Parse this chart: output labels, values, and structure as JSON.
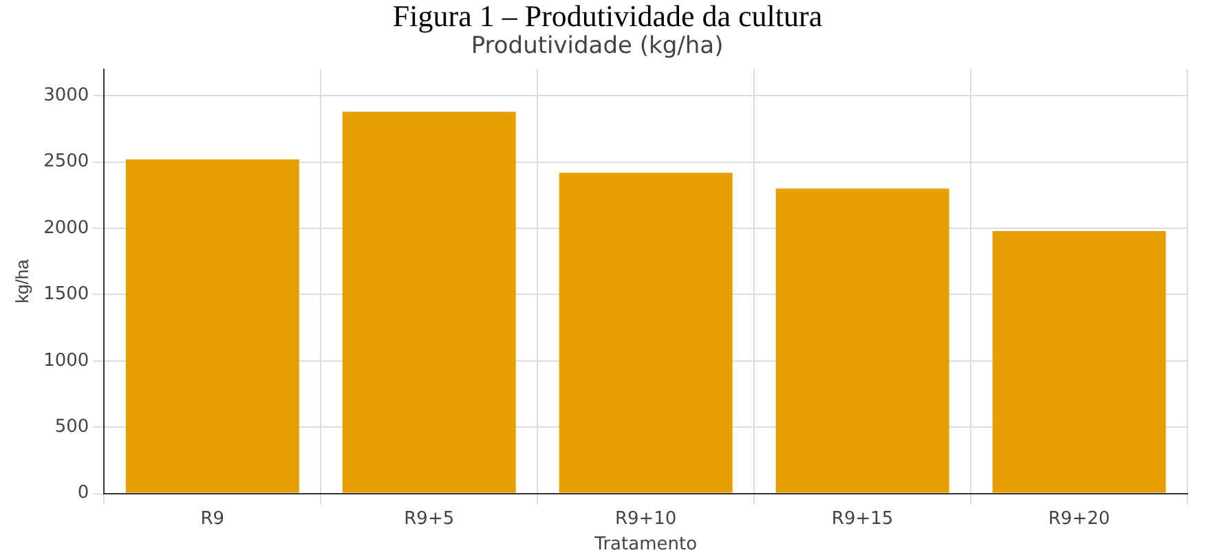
{
  "chart_data": {
    "type": "bar",
    "title": "Produtividade (kg/ha)",
    "xlabel": "Tratamento",
    "ylabel": "kg/ha",
    "annotations": [
      "Figura 1 – Produtividade da cultura"
    ],
    "categories": [
      "R9",
      "R9+5",
      "R9+10",
      "R9+15",
      "R9+20"
    ],
    "values": [
      2520,
      2880,
      2420,
      2300,
      1980
    ],
    "color": "#e69f00",
    "ylim": [
      0,
      3200
    ],
    "yticks": [
      0,
      500,
      1000,
      1500,
      2000,
      2500,
      3000
    ],
    "grid": true
  }
}
